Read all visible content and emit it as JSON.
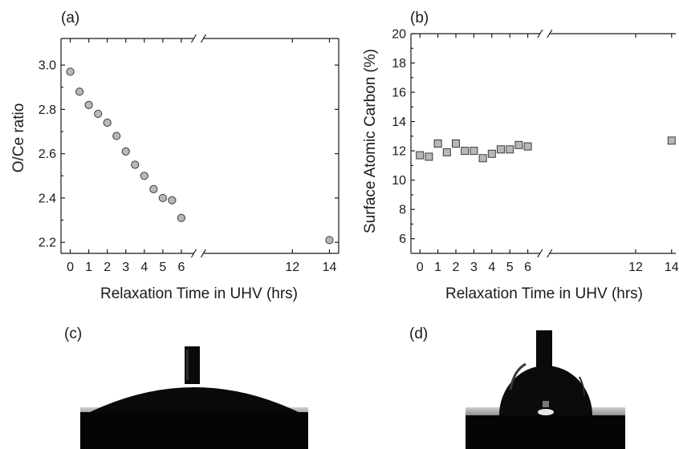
{
  "chart_data": [
    {
      "type": "scatter",
      "panel_label": "(a)",
      "xlabel": "Relaxation Time in UHV (hrs)",
      "ylabel": "O/Ce ratio",
      "xlim": [
        -0.5,
        14.5
      ],
      "ylim": [
        2.15,
        3.12
      ],
      "x_axis_break": [
        6.5,
        11.5
      ],
      "xticks": [
        0,
        1,
        2,
        3,
        4,
        5,
        6,
        12,
        14
      ],
      "yticks": [
        2.2,
        2.4,
        2.6,
        2.8,
        3.0
      ],
      "ytick_format": 1,
      "marker": "circle",
      "marker_color": "#b8b8b8",
      "series": [
        {
          "x": [
            0,
            0.5,
            1,
            1.5,
            2,
            2.5,
            3,
            3.5,
            4,
            4.5,
            5,
            5.5,
            6,
            14
          ],
          "y": [
            2.97,
            2.88,
            2.82,
            2.78,
            2.74,
            2.68,
            2.61,
            2.55,
            2.5,
            2.44,
            2.4,
            2.39,
            2.31,
            2.21
          ]
        }
      ],
      "grid": false
    },
    {
      "type": "scatter",
      "panel_label": "(b)",
      "xlabel": "Relaxation Time in UHV (hrs)",
      "ylabel": "Surface Atomic Carbon (%)",
      "xlim": [
        -0.5,
        14.5
      ],
      "ylim": [
        5,
        20
      ],
      "x_axis_break": [
        6.5,
        11.5
      ],
      "xticks": [
        0,
        1,
        2,
        3,
        4,
        5,
        6,
        12,
        14
      ],
      "yticks": [
        6,
        8,
        10,
        12,
        14,
        16,
        18,
        20
      ],
      "ytick_format": 0,
      "marker": "square",
      "marker_color": "#b8b8b8",
      "series": [
        {
          "x": [
            0,
            0.5,
            1,
            1.5,
            2,
            2.5,
            3,
            3.5,
            4,
            4.5,
            5,
            5.5,
            6,
            14
          ],
          "y": [
            11.7,
            11.6,
            12.5,
            11.9,
            12.5,
            12.0,
            12.0,
            11.5,
            11.8,
            12.1,
            12.1,
            12.4,
            12.3,
            12.7
          ]
        }
      ],
      "grid": false
    }
  ],
  "photos": [
    {
      "panel_label": "(c)",
      "icon": "droplet-low-contact-angle"
    },
    {
      "panel_label": "(d)",
      "icon": "droplet-high-contact-angle"
    }
  ]
}
